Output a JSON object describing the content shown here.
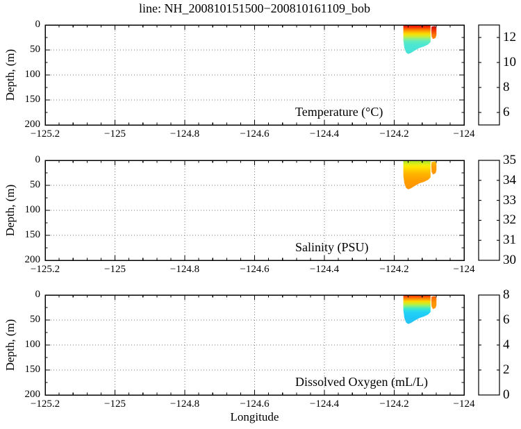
{
  "figure": {
    "title": "line: NH_200810151500−200810161109_bob",
    "xlabel": "Longitude",
    "ylabel": "Depth, (m)",
    "background": "#ffffff"
  },
  "axes": {
    "x": {
      "min": -125.2,
      "max": -124,
      "ticks": [
        -125.2,
        -125,
        -124.8,
        -124.6,
        -124.4,
        -124.2,
        -124
      ],
      "tick_labels": [
        "−125.2",
        "−125",
        "−124.8",
        "−124.6",
        "−124.4",
        "−124.2",
        "−124"
      ],
      "minor_step": 0.04,
      "grid": "dotted"
    },
    "y": {
      "min": 0,
      "max": 200,
      "ticks": [
        0,
        50,
        100,
        150,
        200
      ],
      "tick_labels": [
        "0",
        "50",
        "100",
        "150",
        "200"
      ],
      "minor_step": 25,
      "grid": "dotted"
    }
  },
  "colormap": {
    "name": "jet",
    "stops_top_to_bottom": [
      [
        0,
        "#800000"
      ],
      [
        0.125,
        "#ff0000"
      ],
      [
        0.375,
        "#ffff00"
      ],
      [
        0.625,
        "#00ffff"
      ],
      [
        0.875,
        "#0000ff"
      ],
      [
        1,
        "#000080"
      ]
    ]
  },
  "patch_shape": {
    "main": [
      [
        -124.174,
        0.8
      ],
      [
        -124.096,
        0.8
      ],
      [
        -124.096,
        34
      ],
      [
        -124.103,
        39
      ],
      [
        -124.115,
        43
      ],
      [
        -124.128,
        46
      ],
      [
        -124.141,
        51
      ],
      [
        -124.152,
        56
      ],
      [
        -124.16,
        58
      ],
      [
        -124.166,
        55
      ],
      [
        -124.171,
        46
      ],
      [
        -124.174,
        30
      ]
    ],
    "side": [
      [
        -124.093,
        3
      ],
      [
        -124.083,
        2
      ],
      [
        -124.079,
        6
      ],
      [
        -124.079,
        20
      ],
      [
        -124.082,
        26
      ],
      [
        -124.089,
        28
      ],
      [
        -124.093,
        23
      ],
      [
        -124.094,
        10
      ]
    ]
  },
  "chart_data": [
    {
      "type": "heatmap",
      "variable": "temperature",
      "label": "Temperature (°C)",
      "units": "°C",
      "colorbar": {
        "min": 5,
        "max": 13,
        "ticks": [
          6,
          8,
          10,
          12
        ],
        "tick_labels": [
          "6",
          "8",
          "10",
          "12"
        ]
      },
      "data_extent": {
        "lon_min": -124.175,
        "lon_max": -124.078,
        "depth_min": 0,
        "depth_max": 58
      },
      "profile_depth_value": [
        [
          0,
          12.3
        ],
        [
          5,
          11.8
        ],
        [
          10,
          11.0
        ],
        [
          15,
          10.5
        ],
        [
          20,
          10.0
        ],
        [
          25,
          9.4
        ],
        [
          30,
          8.8
        ],
        [
          40,
          8.1
        ],
        [
          55,
          8.0
        ]
      ],
      "main_gradient": [
        [
          0,
          "#d81400"
        ],
        [
          0.07,
          "#f52600"
        ],
        [
          0.14,
          "#fd6a00"
        ],
        [
          0.22,
          "#ffa800"
        ],
        [
          0.31,
          "#fbe000"
        ],
        [
          0.4,
          "#c9ee3e"
        ],
        [
          0.48,
          "#8cf08c"
        ],
        [
          0.57,
          "#5eecc0"
        ],
        [
          0.69,
          "#4ce6d4"
        ],
        [
          1,
          "#46e2d6"
        ]
      ],
      "side_gradient": [
        [
          0,
          "#b80000"
        ],
        [
          0.34,
          "#f03000"
        ],
        [
          0.69,
          "#ff7700"
        ],
        [
          1,
          "#ff8800"
        ]
      ]
    },
    {
      "type": "heatmap",
      "variable": "salinity",
      "label": "Salinity (PSU)",
      "units": "PSU",
      "colorbar": {
        "min": 30,
        "max": 35,
        "ticks": [
          30,
          31,
          32,
          33,
          34,
          35
        ],
        "tick_labels": [
          "30",
          "31",
          "32",
          "33",
          "34",
          "35"
        ]
      },
      "data_extent": {
        "lon_min": -124.175,
        "lon_max": -124.078,
        "depth_min": 0,
        "depth_max": 58
      },
      "profile_depth_value": [
        [
          0,
          32.6
        ],
        [
          5,
          32.8
        ],
        [
          10,
          33.0
        ],
        [
          15,
          33.2
        ],
        [
          20,
          33.4
        ],
        [
          30,
          33.7
        ],
        [
          40,
          33.9
        ],
        [
          55,
          34.0
        ]
      ],
      "main_gradient": [
        [
          0,
          "#9cdc3e"
        ],
        [
          0.07,
          "#c2e822"
        ],
        [
          0.16,
          "#eeee0e"
        ],
        [
          0.24,
          "#ffe400"
        ],
        [
          0.34,
          "#ffcc00"
        ],
        [
          0.48,
          "#ffb400"
        ],
        [
          0.66,
          "#ffa000"
        ],
        [
          1,
          "#ff9400"
        ]
      ],
      "side_gradient": [
        [
          0,
          "#ffc800"
        ],
        [
          0.43,
          "#ff9e00"
        ],
        [
          1,
          "#ff9600"
        ]
      ]
    },
    {
      "type": "heatmap",
      "variable": "dissolved_oxygen",
      "label": "Dissolved Oxygen (mL/L)",
      "units": "mL/L",
      "colorbar": {
        "min": 0,
        "max": 8,
        "ticks": [
          0,
          2,
          4,
          6,
          8
        ],
        "tick_labels": [
          "0",
          "2",
          "4",
          "6",
          "8"
        ]
      },
      "data_extent": {
        "lon_min": -124.175,
        "lon_max": -124.078,
        "depth_min": 0,
        "depth_max": 58
      },
      "profile_depth_value": [
        [
          0,
          7.0
        ],
        [
          5,
          6.5
        ],
        [
          10,
          6.0
        ],
        [
          15,
          5.2
        ],
        [
          20,
          4.5
        ],
        [
          25,
          3.8
        ],
        [
          30,
          3.3
        ],
        [
          40,
          3.0
        ],
        [
          55,
          2.9
        ]
      ],
      "main_gradient": [
        [
          0,
          "#ee2600"
        ],
        [
          0.07,
          "#fc5a00"
        ],
        [
          0.14,
          "#ff9800"
        ],
        [
          0.22,
          "#ffd800"
        ],
        [
          0.31,
          "#c4ee32"
        ],
        [
          0.4,
          "#76f094"
        ],
        [
          0.48,
          "#38e8d0"
        ],
        [
          0.59,
          "#22d4f4"
        ],
        [
          0.76,
          "#1ec8f8"
        ],
        [
          1,
          "#28c4f0"
        ]
      ],
      "side_gradient": [
        [
          0,
          "#ff5500"
        ],
        [
          0.5,
          "#ff9200"
        ],
        [
          1,
          "#ff9900"
        ]
      ]
    }
  ]
}
